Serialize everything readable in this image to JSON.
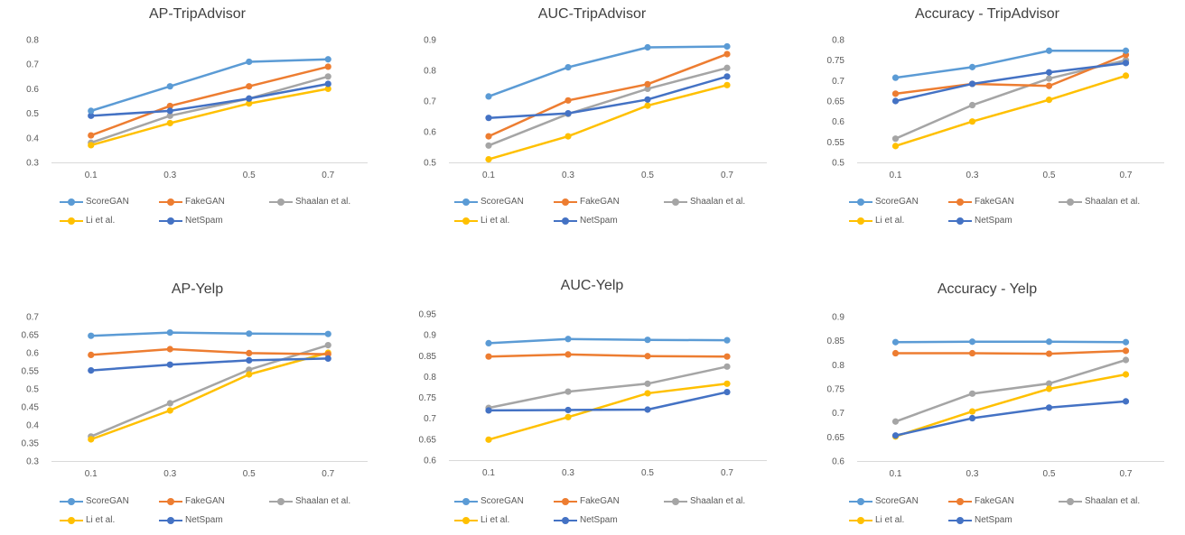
{
  "colors": {
    "ScoreGAN": "#5b9bd5",
    "FakeGAN": "#ed7d31",
    "Shaalan et al.": "#a5a5a5",
    "Li et al.": "#ffc000",
    "NetSpam": "#4472c4",
    "axis": "#d9d9d9",
    "text": "#595959"
  },
  "legend_labels": [
    "ScoreGAN",
    "FakeGAN",
    "Shaalan et al.",
    "Li et al.",
    "NetSpam"
  ],
  "chart_data": [
    {
      "type": "line",
      "title": "AP-TripAdvisor",
      "categories": [
        "0.1",
        "0.3",
        "0.5",
        "0.7"
      ],
      "ylim": [
        0.3,
        0.8
      ],
      "yticks": [
        "0.3",
        "0.4",
        "0.5",
        "0.6",
        "0.7",
        "0.8"
      ],
      "series": [
        {
          "name": "ScoreGAN",
          "values": [
            0.51,
            0.61,
            0.71,
            0.72
          ]
        },
        {
          "name": "FakeGAN",
          "values": [
            0.41,
            0.53,
            0.61,
            0.69
          ]
        },
        {
          "name": "Shaalan et al.",
          "values": [
            0.38,
            0.49,
            0.56,
            0.65
          ]
        },
        {
          "name": "Li et al.",
          "values": [
            0.37,
            0.46,
            0.54,
            0.6
          ]
        },
        {
          "name": "NetSpam",
          "values": [
            0.49,
            0.51,
            0.56,
            0.62
          ]
        }
      ],
      "legend": "bottom"
    },
    {
      "type": "line",
      "title": "AUC-TripAdvisor",
      "categories": [
        "0.1",
        "0.3",
        "0.5",
        "0.7"
      ],
      "ylim": [
        0.5,
        0.9
      ],
      "yticks": [
        "0.5",
        "0.6",
        "0.7",
        "0.8",
        "0.9"
      ],
      "series": [
        {
          "name": "ScoreGAN",
          "values": [
            0.715,
            0.81,
            0.875,
            0.878
          ]
        },
        {
          "name": "FakeGAN",
          "values": [
            0.585,
            0.702,
            0.755,
            0.853
          ]
        },
        {
          "name": "Shaalan et al.",
          "values": [
            0.555,
            0.658,
            0.74,
            0.808
          ]
        },
        {
          "name": "Li et al.",
          "values": [
            0.51,
            0.585,
            0.685,
            0.752
          ]
        },
        {
          "name": "NetSpam",
          "values": [
            0.645,
            0.66,
            0.705,
            0.78
          ]
        }
      ],
      "legend": "bottom"
    },
    {
      "type": "line",
      "title": "Accuracy - TripAdvisor",
      "categories": [
        "0.1",
        "0.3",
        "0.5",
        "0.7"
      ],
      "ylim": [
        0.5,
        0.8
      ],
      "yticks": [
        "0.5",
        "0.55",
        "0.6",
        "0.65",
        "0.7",
        "0.75",
        "0.8"
      ],
      "series": [
        {
          "name": "ScoreGAN",
          "values": [
            0.707,
            0.733,
            0.773,
            0.773
          ]
        },
        {
          "name": "FakeGAN",
          "values": [
            0.668,
            0.692,
            0.687,
            0.763
          ]
        },
        {
          "name": "Shaalan et al.",
          "values": [
            0.558,
            0.64,
            0.705,
            0.75
          ]
        },
        {
          "name": "Li et al.",
          "values": [
            0.54,
            0.6,
            0.653,
            0.712
          ]
        },
        {
          "name": "NetSpam",
          "values": [
            0.65,
            0.692,
            0.72,
            0.743
          ]
        }
      ],
      "legend": "bottom"
    },
    {
      "type": "line",
      "title": "AP-Yelp",
      "categories": [
        "0.1",
        "0.3",
        "0.5",
        "0.7"
      ],
      "ylim": [
        0.3,
        0.7
      ],
      "yticks": [
        "0.3",
        "0.35",
        "0.4",
        "0.45",
        "0.5",
        "0.55",
        "0.6",
        "0.65",
        "0.7"
      ],
      "series": [
        {
          "name": "ScoreGAN",
          "values": [
            0.647,
            0.656,
            0.653,
            0.652
          ]
        },
        {
          "name": "FakeGAN",
          "values": [
            0.594,
            0.61,
            0.599,
            0.596
          ]
        },
        {
          "name": "Shaalan et al.",
          "values": [
            0.368,
            0.46,
            0.553,
            0.621
          ]
        },
        {
          "name": "Li et al.",
          "values": [
            0.36,
            0.44,
            0.54,
            0.6
          ]
        },
        {
          "name": "NetSpam",
          "values": [
            0.551,
            0.567,
            0.579,
            0.584
          ]
        }
      ],
      "legend": "bottom"
    },
    {
      "type": "line",
      "title": "AUC-Yelp",
      "categories": [
        "0.1",
        "0.3",
        "0.5",
        "0.7"
      ],
      "ylim": [
        0.6,
        0.95
      ],
      "yticks": [
        "0.6",
        "0.65",
        "0.7",
        "0.75",
        "0.8",
        "0.85",
        "0.9",
        "0.95"
      ],
      "series": [
        {
          "name": "ScoreGAN",
          "values": [
            0.88,
            0.89,
            0.888,
            0.887
          ]
        },
        {
          "name": "FakeGAN",
          "values": [
            0.848,
            0.853,
            0.849,
            0.848
          ]
        },
        {
          "name": "Shaalan et al.",
          "values": [
            0.725,
            0.764,
            0.783,
            0.824
          ]
        },
        {
          "name": "Li et al.",
          "values": [
            0.649,
            0.703,
            0.76,
            0.783
          ]
        },
        {
          "name": "NetSpam",
          "values": [
            0.719,
            0.72,
            0.721,
            0.763
          ]
        }
      ],
      "legend": "bottom"
    },
    {
      "type": "line",
      "title": "Accuracy - Yelp",
      "categories": [
        "0.1",
        "0.3",
        "0.5",
        "0.7"
      ],
      "ylim": [
        0.6,
        0.9
      ],
      "yticks": [
        "0.6",
        "0.65",
        "0.7",
        "0.75",
        "0.8",
        "0.85",
        "0.9"
      ],
      "series": [
        {
          "name": "ScoreGAN",
          "values": [
            0.847,
            0.848,
            0.848,
            0.847
          ]
        },
        {
          "name": "FakeGAN",
          "values": [
            0.824,
            0.824,
            0.823,
            0.829
          ]
        },
        {
          "name": "Shaalan et al.",
          "values": [
            0.682,
            0.74,
            0.761,
            0.81
          ]
        },
        {
          "name": "Li et al.",
          "values": [
            0.651,
            0.703,
            0.75,
            0.78
          ]
        },
        {
          "name": "NetSpam",
          "values": [
            0.653,
            0.689,
            0.711,
            0.724
          ]
        }
      ],
      "legend": "bottom"
    }
  ]
}
